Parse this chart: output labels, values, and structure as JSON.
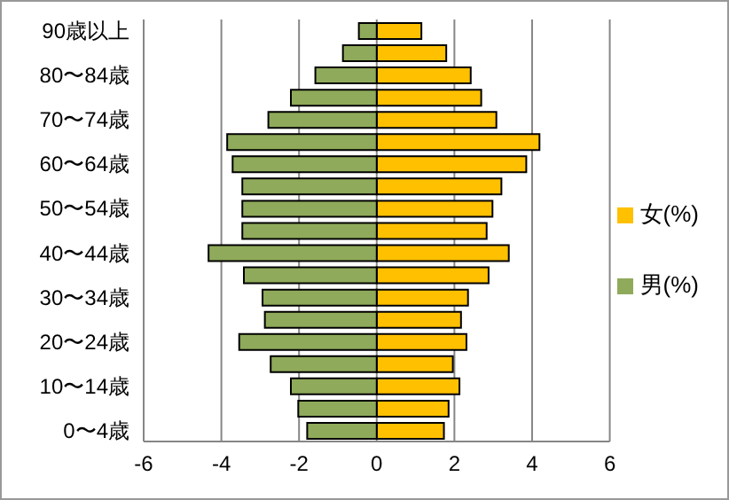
{
  "chart_data": {
    "type": "bar",
    "orientation": "horizontal",
    "stacked": true,
    "categories": [
      "90歳以上",
      null,
      "80〜84歳",
      null,
      "70〜74歳",
      null,
      "60〜64歳",
      null,
      "50〜54歳",
      null,
      "40〜44歳",
      null,
      "30〜34歳",
      null,
      "20〜24歳",
      null,
      "10〜14歳",
      null,
      "0〜4歳"
    ],
    "series": [
      {
        "name": "女(%)",
        "color": "#ffc000",
        "values": [
          1.15,
          1.79,
          2.42,
          2.69,
          3.08,
          4.19,
          3.85,
          3.21,
          2.98,
          2.83,
          3.4,
          2.88,
          2.35,
          2.17,
          2.31,
          1.96,
          2.13,
          1.85,
          1.73
        ]
      },
      {
        "name": "男(%)",
        "color": "#8faa5a",
        "values": [
          -0.46,
          -0.87,
          -1.58,
          -2.21,
          -2.79,
          -3.85,
          -3.71,
          -3.46,
          -3.46,
          -3.46,
          -4.33,
          -3.42,
          -2.94,
          -2.88,
          -3.54,
          -2.73,
          -2.21,
          -2.02,
          -1.79
        ]
      }
    ],
    "xlim": [
      -6,
      6
    ],
    "xticks": [
      -6,
      -4,
      -2,
      0,
      2,
      4,
      6
    ],
    "grid": "x",
    "legend": "right"
  }
}
